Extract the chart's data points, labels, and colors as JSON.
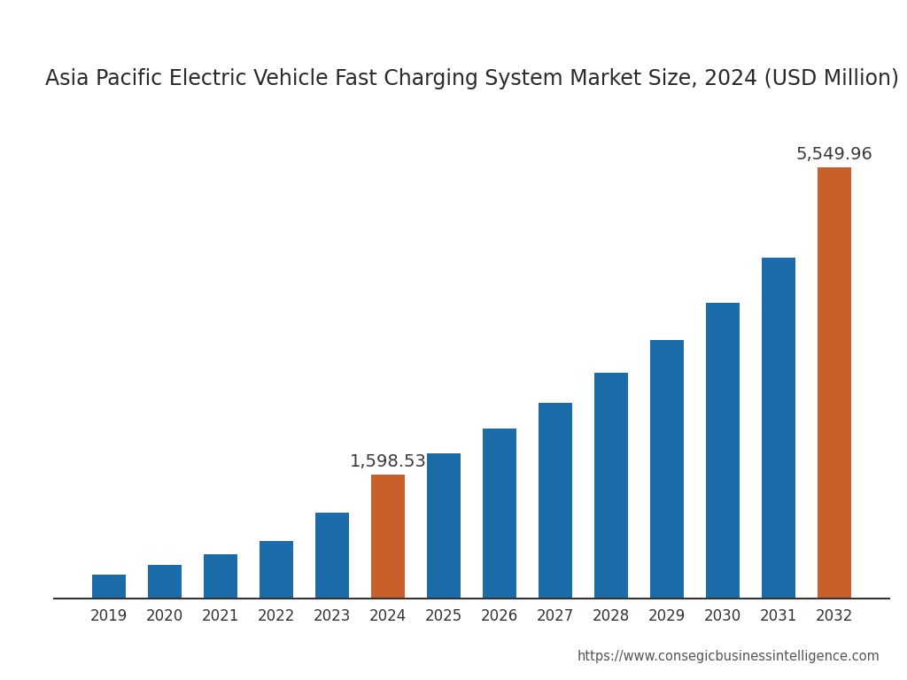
{
  "title": "Asia Pacific Electric Vehicle Fast Charging System Market Size, 2024 (USD Million)",
  "years": [
    2019,
    2020,
    2021,
    2022,
    2023,
    2024,
    2025,
    2026,
    2027,
    2028,
    2029,
    2030,
    2031,
    2032
  ],
  "values": [
    310,
    430,
    570,
    740,
    1100,
    1598.53,
    1870,
    2180,
    2520,
    2900,
    3330,
    3800,
    4380,
    5549.96
  ],
  "colors": [
    "#1B6CA8",
    "#1B6CA8",
    "#1B6CA8",
    "#1B6CA8",
    "#1B6CA8",
    "#C95F2A",
    "#1B6CA8",
    "#1B6CA8",
    "#1B6CA8",
    "#1B6CA8",
    "#1B6CA8",
    "#1B6CA8",
    "#1B6CA8",
    "#C95F2A"
  ],
  "labeled_bars": [
    5,
    13
  ],
  "labeled_values": [
    "1,598.53",
    "5,549.96"
  ],
  "ylim": [
    0,
    6300
  ],
  "background_color": "#FFFFFF",
  "title_fontsize": 17,
  "tick_fontsize": 12,
  "label_fontsize": 14,
  "website": "https://www.consegicbusinessintelligence.com",
  "bar_width": 0.6
}
